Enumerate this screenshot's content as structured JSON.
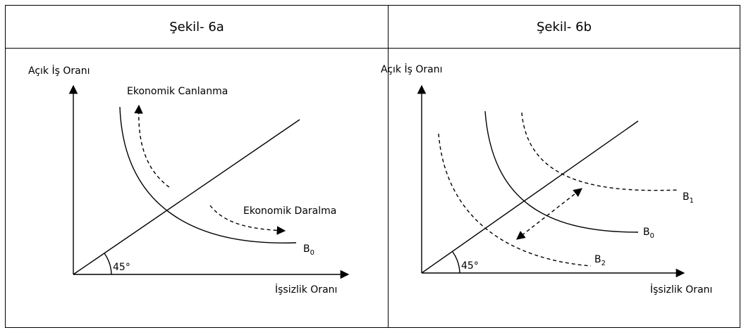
{
  "panels": [
    {
      "title": "Şekil- 6a",
      "y_axis_label": "Açık İş Oranı",
      "x_axis_label": "İşsizlik Oranı",
      "angle_label": "45°",
      "annotations": [
        "Ekonomik Canlanma",
        "Ekonomik Daralma"
      ],
      "curves": [
        {
          "base": "B",
          "sub": "0"
        }
      ]
    },
    {
      "title": "Şekil- 6b",
      "y_axis_label": "Açık İş Oranı",
      "x_axis_label": "İşsizlik Oranı",
      "angle_label": "45°",
      "annotations": [],
      "curves": [
        {
          "base": "B",
          "sub": "1"
        },
        {
          "base": "B",
          "sub": "0"
        },
        {
          "base": "B",
          "sub": "2"
        }
      ]
    }
  ]
}
